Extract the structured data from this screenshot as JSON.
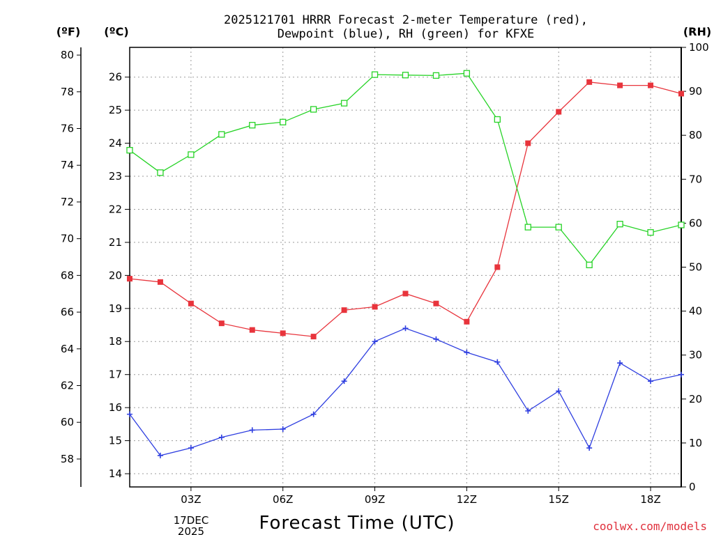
{
  "chart_data": {
    "type": "line",
    "title": [
      "2025121701 HRRR Forecast 2-meter Temperature (red),",
      "Dewpoint (blue), RH (green) for KFXE"
    ],
    "xlabel": "Forecast Time (UTC)",
    "units": {
      "fahrenheit": "(ºF)",
      "celsius": "(ºC)",
      "rh": "(RH)"
    },
    "x_ticks": [
      {
        "hour": 3,
        "label": "03Z"
      },
      {
        "hour": 6,
        "label": "06Z"
      },
      {
        "hour": 9,
        "label": "09Z"
      },
      {
        "hour": 12,
        "label": "12Z"
      },
      {
        "hour": 15,
        "label": "15Z"
      },
      {
        "hour": 18,
        "label": "18Z"
      }
    ],
    "date_label": [
      "17DEC",
      "2025"
    ],
    "xlim": [
      1,
      19
    ],
    "ylim_celsius": [
      13.6,
      26.9
    ],
    "ylim_fahrenheit": [
      56.48,
      80.42
    ],
    "ylim_rh": [
      0,
      100
    ],
    "ticks_celsius": [
      14,
      15,
      16,
      17,
      18,
      19,
      20,
      21,
      22,
      23,
      24,
      25,
      26
    ],
    "ticks_fahrenheit": [
      58,
      60,
      62,
      64,
      66,
      68,
      70,
      72,
      74,
      76,
      78,
      80
    ],
    "ticks_rh": [
      0,
      10,
      20,
      30,
      40,
      50,
      60,
      70,
      80,
      90,
      100
    ],
    "x": [
      1,
      2,
      3,
      4,
      5,
      6,
      7,
      8,
      9,
      10,
      11,
      12,
      13,
      14,
      15,
      16,
      17,
      18,
      19
    ],
    "series": [
      {
        "name": "Temperature",
        "color": "#e8343c",
        "marker": "filled-square",
        "axis": "celsius",
        "values": [
          19.9,
          19.8,
          19.15,
          18.55,
          18.35,
          18.25,
          18.15,
          18.95,
          19.05,
          19.45,
          19.15,
          18.6,
          20.25,
          24.0,
          24.95,
          25.85,
          25.75,
          25.75,
          25.5
        ]
      },
      {
        "name": "Dewpoint",
        "color": "#2e3ee0",
        "marker": "plus",
        "axis": "celsius",
        "values": [
          15.8,
          14.55,
          14.78,
          15.1,
          15.32,
          15.35,
          15.8,
          16.8,
          18.0,
          18.4,
          18.07,
          17.67,
          17.38,
          15.9,
          16.5,
          14.78,
          17.35,
          16.8,
          17.0
        ]
      },
      {
        "name": "RH",
        "color": "#26d326",
        "marker": "open-square",
        "axis": "rh",
        "values": [
          76.6,
          71.5,
          75.6,
          80.2,
          82.3,
          83.0,
          85.9,
          87.3,
          93.8,
          93.7,
          93.6,
          94.1,
          83.6,
          59.1,
          59.1,
          50.5,
          59.8,
          57.9,
          59.6
        ]
      }
    ],
    "grid": true,
    "credit": "coolwx.com/models"
  }
}
